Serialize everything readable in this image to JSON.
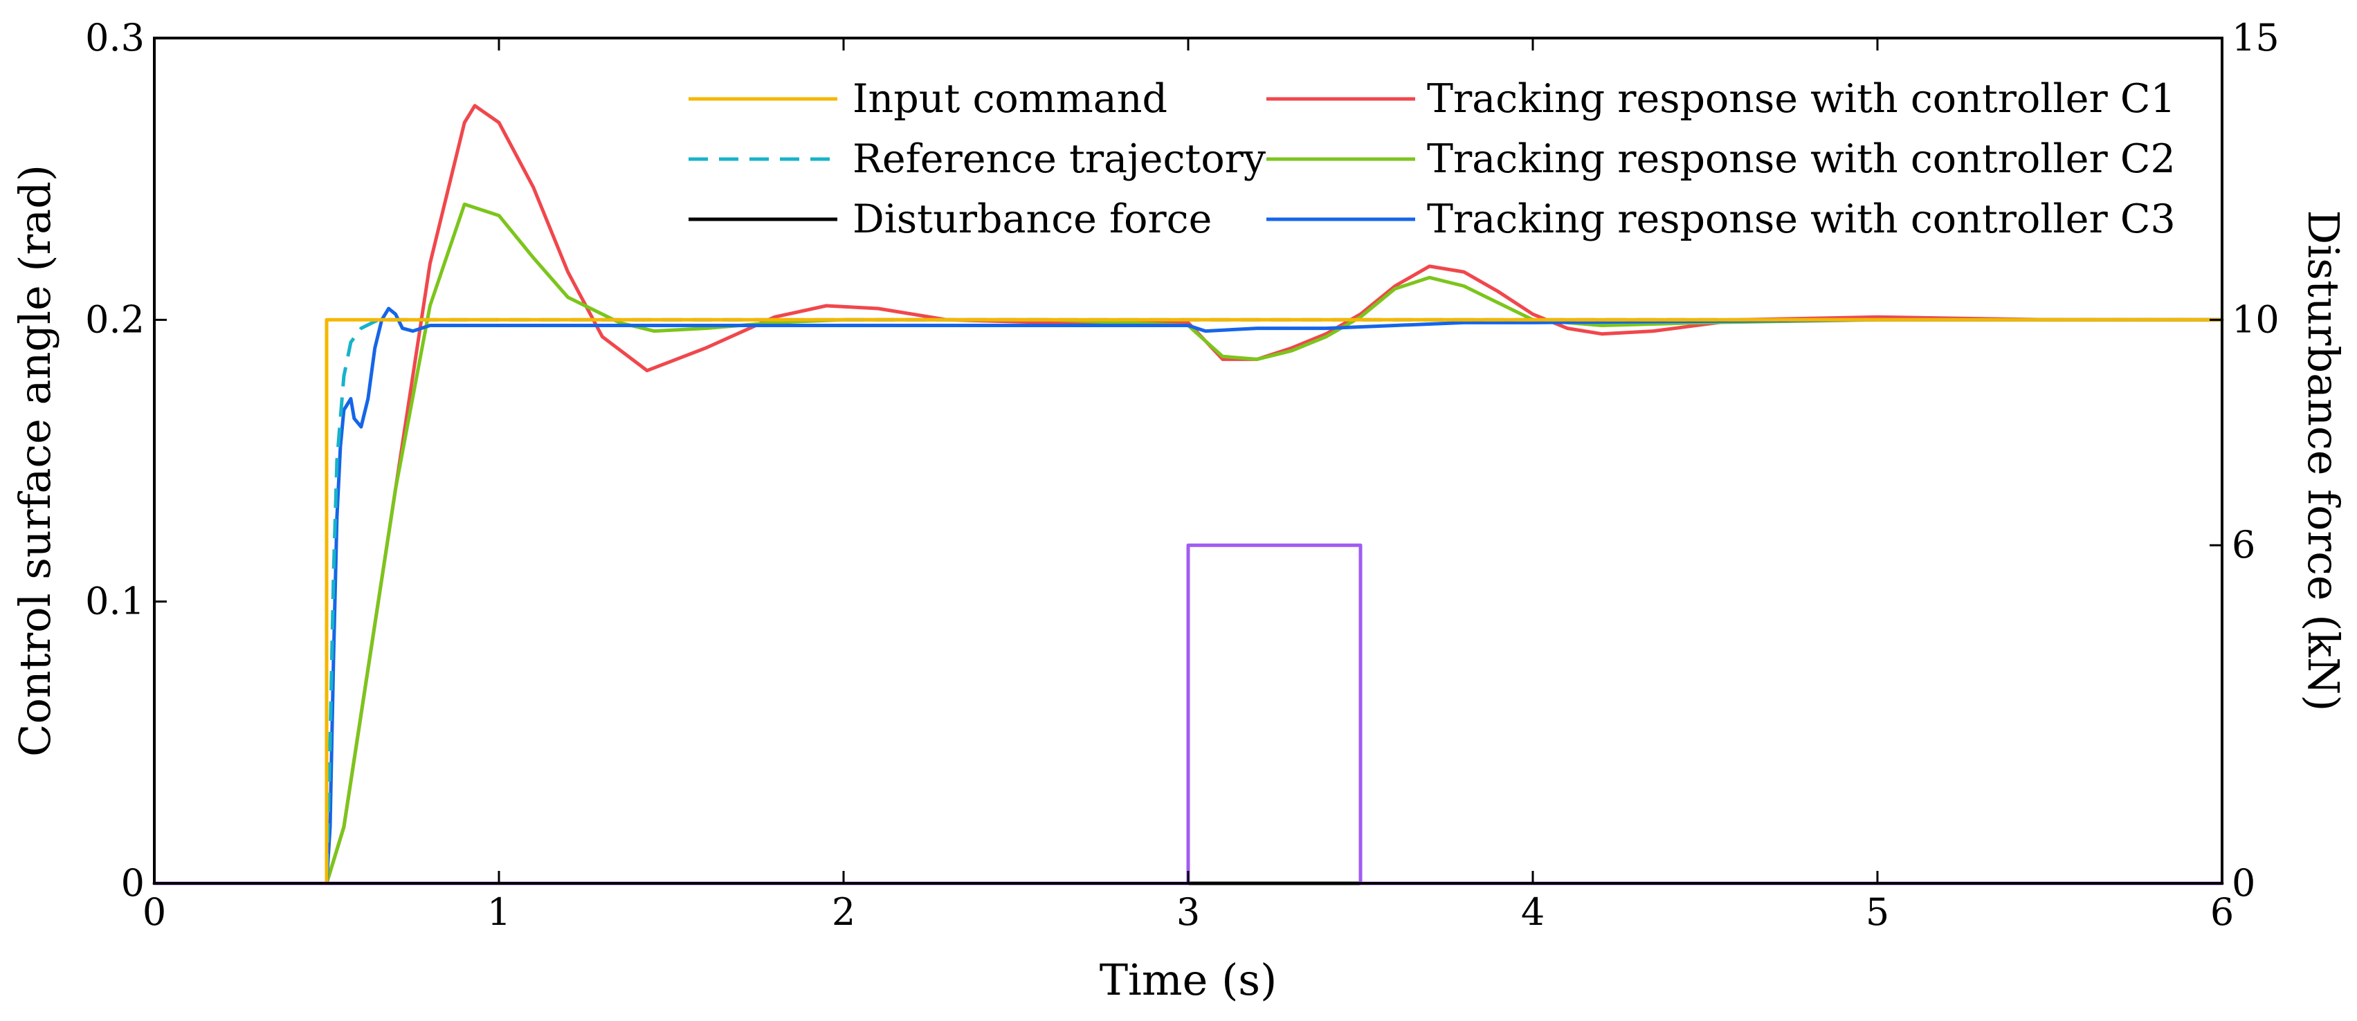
{
  "chart_data": {
    "type": "line",
    "title": "",
    "xlabel": "Time (s)",
    "ylabel": "Control surface angle (rad)",
    "y2label": "Disturbance force (kN)",
    "xlim": [
      0,
      6
    ],
    "ylim": [
      0,
      0.3
    ],
    "y2lim": [
      0,
      15
    ],
    "x_ticks": [
      "0",
      "1",
      "2",
      "3",
      "4",
      "5",
      "6"
    ],
    "y_ticks": [
      "0",
      "0.1",
      "0.2",
      "0.3"
    ],
    "y2_ticks": [
      "0",
      "6",
      "10",
      "15"
    ],
    "grid": false,
    "legend_position": "top-right, two columns",
    "series": [
      {
        "name": "Input command",
        "axis": "left",
        "color": "#F5B700",
        "style": "solid",
        "x": [
          0,
          0.5,
          0.5,
          6
        ],
        "y": [
          0,
          0,
          0.2,
          0.2
        ]
      },
      {
        "name": "Reference trajectory",
        "axis": "left",
        "color": "#17B3C9",
        "style": "dashed",
        "x": [
          0,
          0.5,
          0.51,
          0.52,
          0.53,
          0.55,
          0.57,
          0.6,
          0.65,
          6
        ],
        "y": [
          0,
          0,
          0.05,
          0.11,
          0.15,
          0.18,
          0.192,
          0.197,
          0.2,
          0.2
        ]
      },
      {
        "name": "Disturbance force",
        "axis": "right",
        "color": "#000000",
        "style": "solid",
        "x": [
          0,
          6
        ],
        "y": [
          0,
          0
        ]
      },
      {
        "name": "Tracking response with controller C1",
        "axis": "left",
        "color": "#F0474C",
        "style": "solid",
        "x": [
          0,
          0.5,
          0.55,
          0.6,
          0.7,
          0.8,
          0.9,
          0.93,
          1.0,
          1.1,
          1.2,
          1.3,
          1.43,
          1.6,
          1.8,
          1.95,
          2.1,
          2.3,
          2.6,
          3.0,
          3.1,
          3.2,
          3.3,
          3.4,
          3.5,
          3.6,
          3.7,
          3.8,
          3.9,
          4.0,
          4.1,
          4.2,
          4.35,
          4.6,
          5.0,
          5.5,
          6.0
        ],
        "y": [
          0,
          0,
          0.02,
          0.06,
          0.14,
          0.22,
          0.27,
          0.276,
          0.27,
          0.247,
          0.217,
          0.194,
          0.182,
          0.19,
          0.201,
          0.205,
          0.204,
          0.2,
          0.199,
          0.199,
          0.186,
          0.186,
          0.19,
          0.195,
          0.202,
          0.212,
          0.219,
          0.217,
          0.21,
          0.202,
          0.197,
          0.195,
          0.196,
          0.2,
          0.201,
          0.2,
          0.2
        ]
      },
      {
        "name": "Tracking response with controller C2",
        "axis": "left",
        "color": "#7CC51C",
        "style": "solid",
        "x": [
          0,
          0.5,
          0.55,
          0.6,
          0.7,
          0.8,
          0.9,
          1.0,
          1.1,
          1.2,
          1.35,
          1.45,
          1.6,
          1.8,
          2.0,
          2.3,
          2.6,
          3.0,
          3.1,
          3.2,
          3.3,
          3.4,
          3.5,
          3.6,
          3.7,
          3.8,
          3.9,
          4.0,
          4.2,
          4.5,
          5.0,
          6.0
        ],
        "y": [
          0,
          0,
          0.02,
          0.06,
          0.14,
          0.205,
          0.241,
          0.237,
          0.222,
          0.208,
          0.199,
          0.196,
          0.197,
          0.199,
          0.2,
          0.2,
          0.2,
          0.198,
          0.187,
          0.186,
          0.189,
          0.194,
          0.201,
          0.211,
          0.215,
          0.212,
          0.206,
          0.2,
          0.198,
          0.199,
          0.2,
          0.2
        ]
      },
      {
        "name": "Tracking response with controller C3",
        "axis": "left",
        "color": "#1565E8",
        "style": "solid",
        "x": [
          0,
          0.5,
          0.51,
          0.52,
          0.53,
          0.54,
          0.55,
          0.57,
          0.58,
          0.6,
          0.62,
          0.64,
          0.66,
          0.68,
          0.7,
          0.72,
          0.75,
          0.8,
          0.9,
          1.0,
          2.0,
          3.0,
          3.05,
          3.2,
          3.4,
          3.6,
          3.8,
          4.0,
          5.0,
          6.0
        ],
        "y": [
          0,
          0,
          0.02,
          0.08,
          0.13,
          0.155,
          0.168,
          0.172,
          0.165,
          0.162,
          0.172,
          0.19,
          0.2,
          0.204,
          0.202,
          0.197,
          0.196,
          0.198,
          0.198,
          0.198,
          0.198,
          0.198,
          0.196,
          0.197,
          0.197,
          0.198,
          0.199,
          0.199,
          0.2,
          0.2
        ]
      },
      {
        "name": "Disturbance force (pulse)",
        "legend": false,
        "axis": "right",
        "color": "#A15CF2",
        "style": "solid",
        "x": [
          0,
          3.0,
          3.0,
          3.5,
          3.5,
          6.0
        ],
        "y": [
          0,
          0,
          6,
          6,
          0,
          0
        ]
      }
    ]
  }
}
